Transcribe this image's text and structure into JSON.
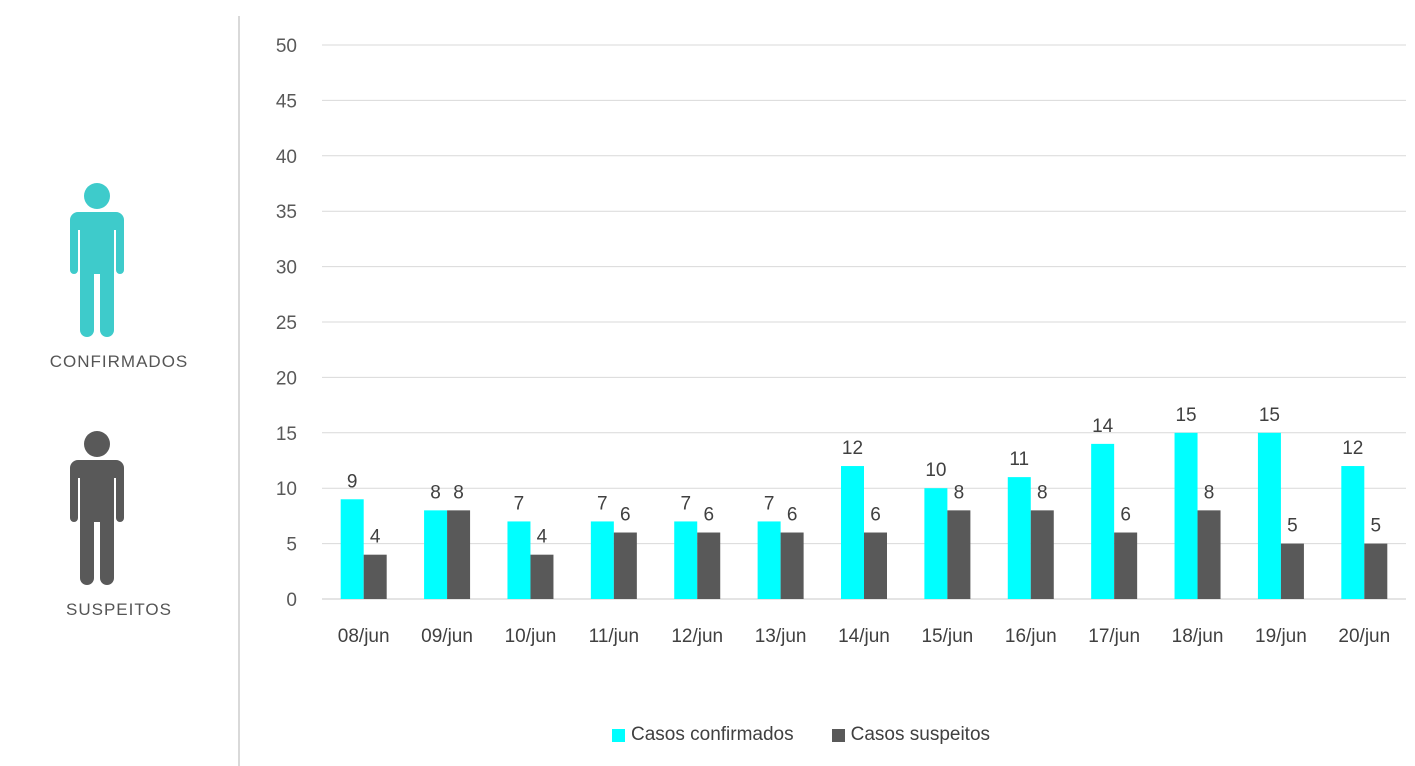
{
  "side_panel": {
    "confirmados_label": "CONFIRMADOS",
    "suspeitos_label": "SUSPEITOS",
    "confirmados_color": "#3ecbcb",
    "suspeitos_color": "#595959"
  },
  "chart_data": {
    "type": "bar",
    "title": "",
    "xlabel": "",
    "ylabel": "",
    "categories": [
      "08/jun",
      "09/jun",
      "10/jun",
      "11/jun",
      "12/jun",
      "13/jun",
      "14/jun",
      "15/jun",
      "16/jun",
      "17/jun",
      "18/jun",
      "19/jun",
      "20/jun"
    ],
    "series": [
      {
        "name": "Casos confirmados",
        "color": "#00ffff",
        "values": [
          9,
          8,
          7,
          7,
          7,
          7,
          12,
          10,
          11,
          14,
          15,
          15,
          12
        ]
      },
      {
        "name": "Casos suspeitos",
        "color": "#595959",
        "values": [
          4,
          8,
          4,
          6,
          6,
          6,
          6,
          8,
          8,
          6,
          8,
          5,
          5
        ]
      }
    ],
    "ylim": [
      0,
      50
    ],
    "yticks": [
      0,
      5,
      10,
      15,
      20,
      25,
      30,
      35,
      40,
      45,
      50
    ],
    "grid": true,
    "legend_position": "bottom"
  }
}
